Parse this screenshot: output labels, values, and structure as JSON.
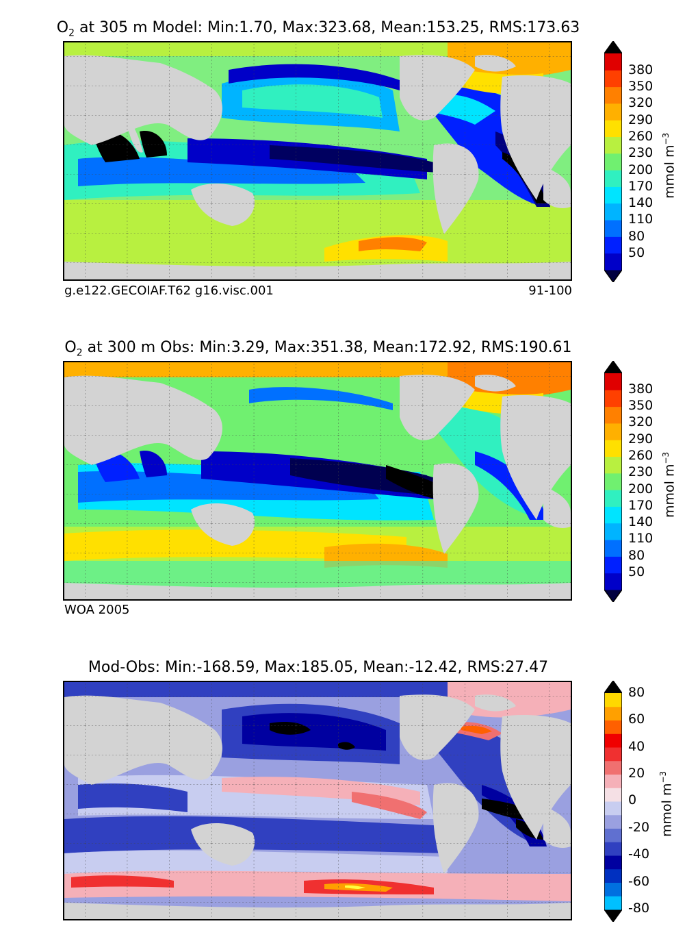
{
  "panels": [
    {
      "title_var": "O",
      "title_sub": "2",
      "title_rest": "at 305 m Model: Min:1.70, Max:323.68, Mean:153.25, RMS:173.63",
      "footer_left": "g.e122.GECOIAF.T62 g16.visc.001",
      "footer_right": "91-100",
      "colorbar": {
        "ticks": [
          "50",
          "80",
          "110",
          "140",
          "170",
          "200",
          "230",
          "260",
          "290",
          "320",
          "350",
          "380"
        ],
        "unit_base": "mmol m",
        "unit_exp": "−3",
        "colors": [
          "#000080",
          "#0000c8",
          "#0020ff",
          "#0070ff",
          "#00b4ff",
          "#00e4ff",
          "#30f0c0",
          "#70f070",
          "#b8f040",
          "#ffe000",
          "#ffb000",
          "#ff8000",
          "#ff4000",
          "#e00000",
          "#800000"
        ]
      }
    },
    {
      "title_var": "O",
      "title_sub": "2",
      "title_rest": "at 300 m Obs: Min:3.29, Max:351.38, Mean:172.92, RMS:190.61",
      "footer_left": "WOA 2005",
      "footer_right": "",
      "colorbar": {
        "ticks": [
          "50",
          "80",
          "110",
          "140",
          "170",
          "200",
          "230",
          "260",
          "290",
          "320",
          "350",
          "380"
        ],
        "unit_base": "mmol m",
        "unit_exp": "−3",
        "colors": [
          "#000080",
          "#0000c8",
          "#0020ff",
          "#0070ff",
          "#00b4ff",
          "#00e4ff",
          "#30f0c0",
          "#70f070",
          "#b8f040",
          "#ffe000",
          "#ffb000",
          "#ff8000",
          "#ff4000",
          "#e00000",
          "#800000"
        ]
      }
    },
    {
      "title_var": "",
      "title_sub": "",
      "title_rest": "Mod-Obs: Min:-168.59, Max:185.05, Mean:-12.42, RMS:27.47",
      "footer_left": "",
      "footer_right": "",
      "colorbar": {
        "ticks": [
          "-80",
          "-60",
          "-40",
          "-20",
          "0",
          "20",
          "40",
          "60",
          "80"
        ],
        "unit_base": "mmol m",
        "unit_exp": "−3",
        "colors": [
          "#00ffff",
          "#00c0ff",
          "#0070e0",
          "#0030c0",
          "#0000a0",
          "#3040c0",
          "#6070d0",
          "#9aa0e0",
          "#c8cdf0",
          "#f5e0e5",
          "#f5b0b8",
          "#f07070",
          "#f03030",
          "#f00000",
          "#ff6000",
          "#ffa000",
          "#ffd800",
          "#ffff40"
        ]
      }
    }
  ],
  "colors": {
    "land": "#d3d3d3",
    "frame": "#000000"
  }
}
